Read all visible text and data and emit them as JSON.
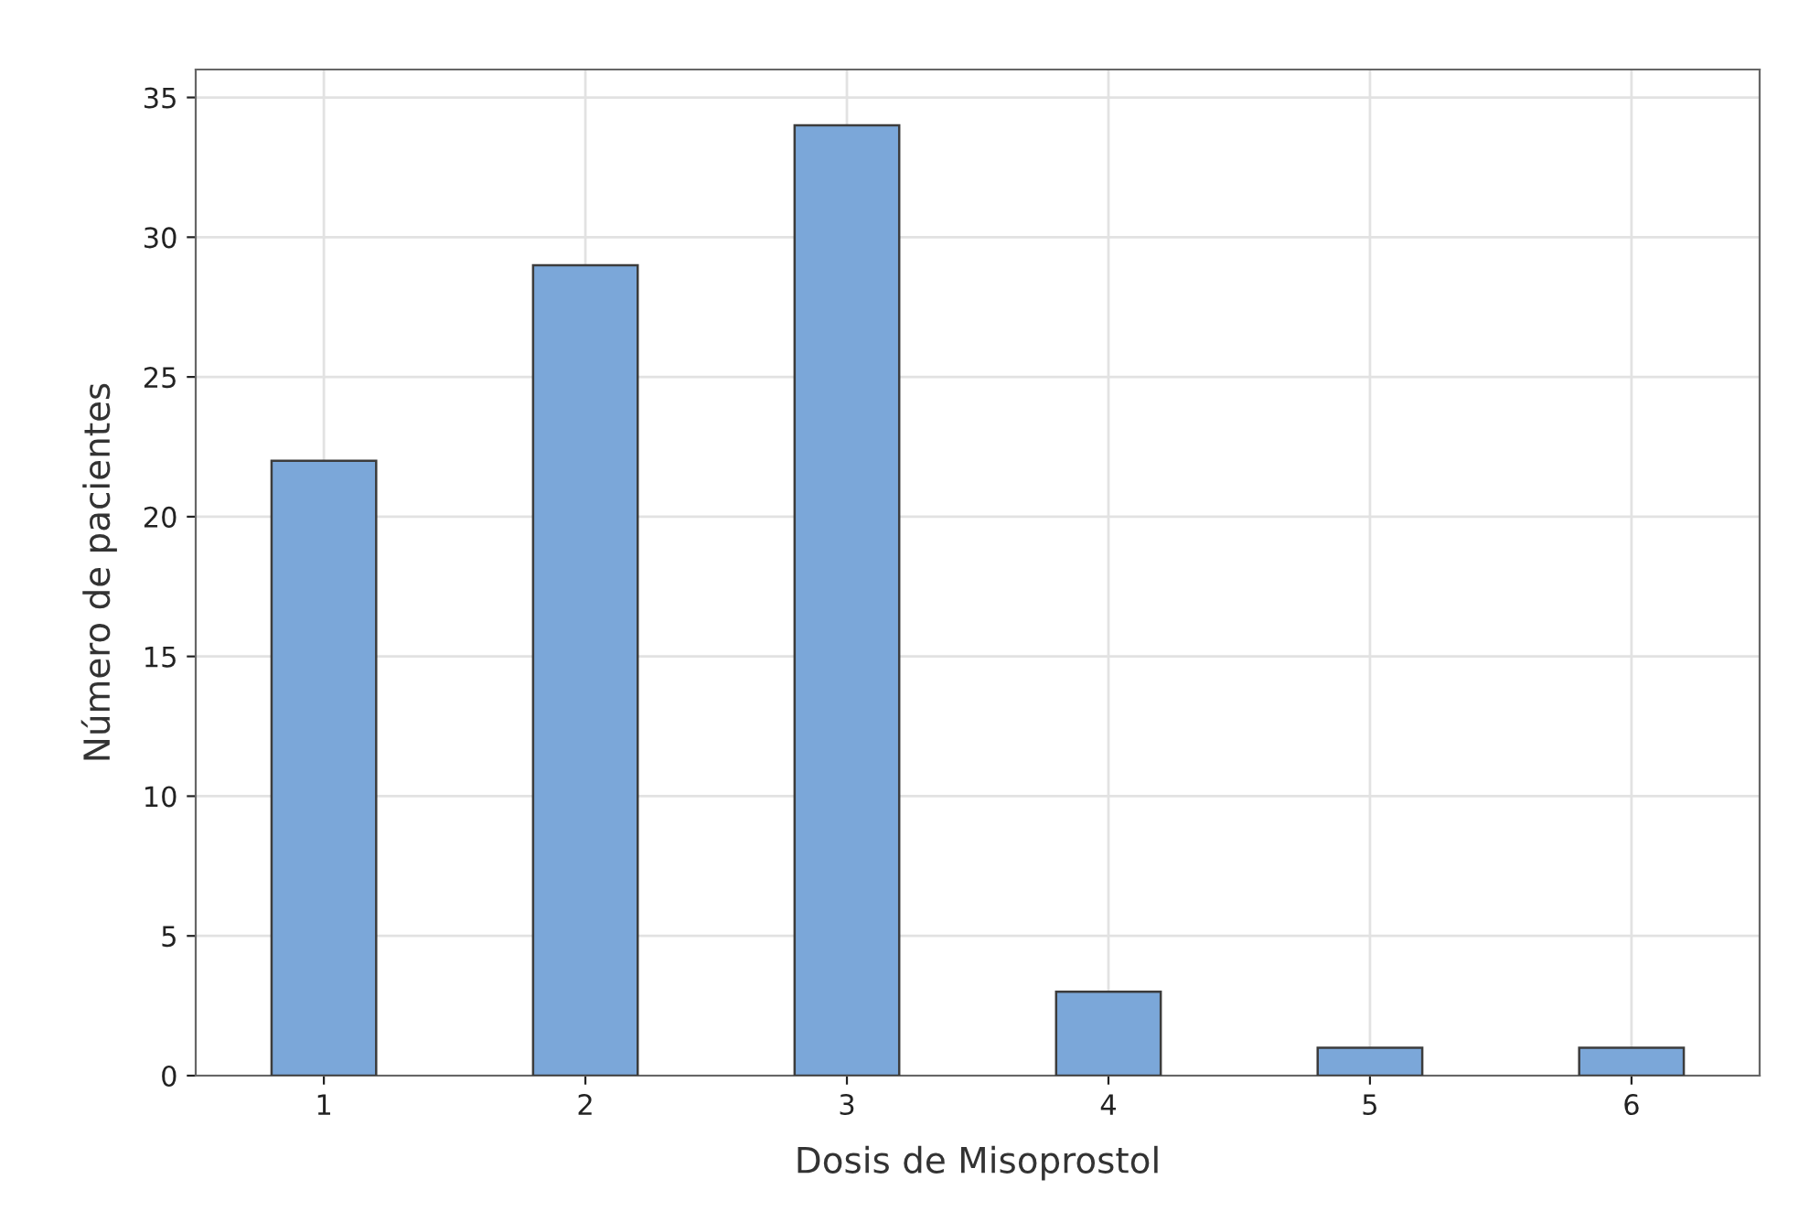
{
  "chart_data": {
    "type": "bar",
    "xlabel": "Dosis de Misoprostol",
    "ylabel": "Número de pacientes",
    "categories": [
      "1",
      "2",
      "3",
      "4",
      "5",
      "6"
    ],
    "values": [
      22,
      29,
      34,
      3,
      1,
      1
    ],
    "color": "#7ba7d9",
    "ylim": [
      0,
      36
    ],
    "yticks": [
      0,
      5,
      10,
      15,
      20,
      25,
      30,
      35
    ],
    "grid": true
  }
}
